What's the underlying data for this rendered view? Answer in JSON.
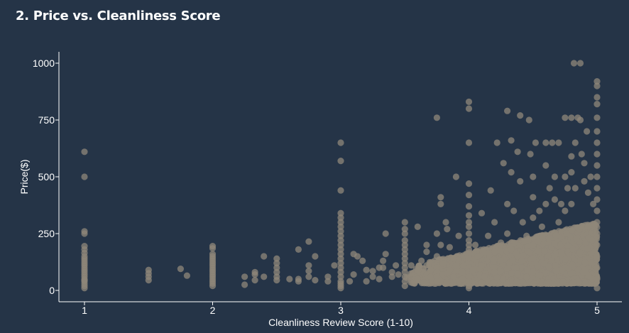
{
  "chart_data": {
    "type": "scatter",
    "title": "2. Price vs. Cleanliness Score",
    "xlabel": "Cleanliness Review Score (1-10)",
    "ylabel": "Price($)",
    "xlim": [
      0.8,
      5.2
    ],
    "ylim": [
      -50,
      1050
    ],
    "xticks": [
      1,
      2,
      3,
      4,
      5
    ],
    "yticks": [
      0,
      250,
      500,
      750,
      1000
    ],
    "grid": false,
    "point_color": "#8f877a",
    "point_opacity": 0.75,
    "series": [
      {
        "points": [
          [
            1,
            610
          ],
          [
            1,
            500
          ],
          [
            1,
            260
          ],
          [
            1,
            250
          ],
          [
            1,
            195
          ],
          [
            1,
            180
          ],
          [
            1,
            165
          ],
          [
            1,
            150
          ],
          [
            1,
            140
          ],
          [
            1,
            130
          ],
          [
            1,
            120
          ],
          [
            1,
            110
          ],
          [
            1,
            100
          ],
          [
            1,
            90
          ],
          [
            1,
            80
          ],
          [
            1,
            70
          ],
          [
            1,
            60
          ],
          [
            1,
            50
          ],
          [
            1,
            45
          ],
          [
            1,
            40
          ],
          [
            1,
            30
          ],
          [
            1,
            20
          ],
          [
            1,
            10
          ],
          [
            1.5,
            90
          ],
          [
            1.5,
            75
          ],
          [
            1.5,
            60
          ],
          [
            1.5,
            45
          ],
          [
            1.75,
            95
          ],
          [
            1.8,
            65
          ],
          [
            2,
            195
          ],
          [
            2,
            185
          ],
          [
            2,
            160
          ],
          [
            2,
            150
          ],
          [
            2,
            140
          ],
          [
            2,
            130
          ],
          [
            2,
            120
          ],
          [
            2,
            110
          ],
          [
            2,
            100
          ],
          [
            2,
            90
          ],
          [
            2,
            80
          ],
          [
            2,
            70
          ],
          [
            2,
            60
          ],
          [
            2,
            50
          ],
          [
            2,
            40
          ],
          [
            2,
            30
          ],
          [
            2,
            20
          ],
          [
            2.25,
            60
          ],
          [
            2.25,
            25
          ],
          [
            2.33,
            80
          ],
          [
            2.33,
            70
          ],
          [
            2.33,
            45
          ],
          [
            2.4,
            150
          ],
          [
            2.4,
            60
          ],
          [
            2.5,
            140
          ],
          [
            2.5,
            120
          ],
          [
            2.5,
            100
          ],
          [
            2.5,
            80
          ],
          [
            2.5,
            60
          ],
          [
            2.5,
            45
          ],
          [
            2.67,
            180
          ],
          [
            2.67,
            50
          ],
          [
            2.67,
            40
          ],
          [
            2.6,
            50
          ],
          [
            2.75,
            215
          ],
          [
            2.75,
            110
          ],
          [
            2.75,
            85
          ],
          [
            2.75,
            60
          ],
          [
            2.8,
            150
          ],
          [
            2.8,
            45
          ],
          [
            2.9,
            60
          ],
          [
            2.9,
            40
          ],
          [
            2.95,
            110
          ],
          [
            3,
            650
          ],
          [
            3,
            570
          ],
          [
            3,
            440
          ],
          [
            3,
            340
          ],
          [
            3,
            320
          ],
          [
            3,
            300
          ],
          [
            3,
            280
          ],
          [
            3,
            260
          ],
          [
            3,
            240
          ],
          [
            3,
            220
          ],
          [
            3,
            200
          ],
          [
            3,
            180
          ],
          [
            3,
            160
          ],
          [
            3,
            140
          ],
          [
            3,
            120
          ],
          [
            3,
            100
          ],
          [
            3,
            80
          ],
          [
            3,
            60
          ],
          [
            3,
            40
          ],
          [
            3,
            30
          ],
          [
            3,
            20
          ],
          [
            3,
            10
          ],
          [
            3.07,
            40
          ],
          [
            3.1,
            70
          ],
          [
            3.1,
            160
          ],
          [
            3.13,
            150
          ],
          [
            3.17,
            130
          ],
          [
            3.2,
            90
          ],
          [
            3.2,
            40
          ],
          [
            3.25,
            85
          ],
          [
            3.25,
            60
          ],
          [
            3.3,
            100
          ],
          [
            3.3,
            50
          ],
          [
            3.33,
            130
          ],
          [
            3.33,
            100
          ],
          [
            3.35,
            250
          ],
          [
            3.35,
            160
          ],
          [
            3.4,
            80
          ],
          [
            3.4,
            60
          ],
          [
            3.43,
            110
          ],
          [
            3.45,
            70
          ],
          [
            3.5,
            300
          ],
          [
            3.5,
            270
          ],
          [
            3.5,
            250
          ],
          [
            3.5,
            220
          ],
          [
            3.5,
            200
          ],
          [
            3.5,
            180
          ],
          [
            3.5,
            160
          ],
          [
            3.5,
            140
          ],
          [
            3.5,
            120
          ],
          [
            3.5,
            100
          ],
          [
            3.5,
            80
          ],
          [
            3.5,
            60
          ],
          [
            3.5,
            40
          ],
          [
            3.5,
            20
          ],
          [
            3.55,
            110
          ],
          [
            3.6,
            280
          ],
          [
            3.6,
            90
          ],
          [
            3.6,
            50
          ],
          [
            3.63,
            130
          ],
          [
            3.67,
            200
          ],
          [
            3.67,
            170
          ],
          [
            3.67,
            110
          ],
          [
            3.67,
            70
          ],
          [
            3.7,
            60
          ],
          [
            3.7,
            90
          ],
          [
            3.73,
            110
          ],
          [
            3.75,
            760
          ],
          [
            3.75,
            250
          ],
          [
            3.75,
            150
          ],
          [
            3.75,
            100
          ],
          [
            3.75,
            80
          ],
          [
            3.75,
            60
          ],
          [
            3.75,
            40
          ],
          [
            3.78,
            410
          ],
          [
            3.78,
            380
          ],
          [
            3.78,
            200
          ],
          [
            3.8,
            120
          ],
          [
            3.8,
            70
          ],
          [
            3.82,
            300
          ],
          [
            3.83,
            270
          ],
          [
            3.85,
            190
          ],
          [
            3.85,
            90
          ],
          [
            3.88,
            140
          ],
          [
            3.88,
            60
          ],
          [
            3.9,
            500
          ],
          [
            3.9,
            110
          ],
          [
            3.92,
            240
          ],
          [
            3.95,
            80
          ],
          [
            3.95,
            50
          ],
          [
            4,
            830
          ],
          [
            4,
            800
          ],
          [
            4,
            650
          ],
          [
            4,
            470
          ],
          [
            4,
            420
          ],
          [
            4,
            370
          ],
          [
            4,
            330
          ],
          [
            4,
            300
          ],
          [
            4,
            280
          ],
          [
            4,
            250
          ],
          [
            4,
            220
          ],
          [
            4,
            200
          ],
          [
            4,
            180
          ],
          [
            4,
            160
          ],
          [
            4,
            140
          ],
          [
            4,
            120
          ],
          [
            4,
            100
          ],
          [
            4,
            80
          ],
          [
            4,
            60
          ],
          [
            4,
            40
          ],
          [
            4,
            20
          ],
          [
            4,
            10
          ],
          [
            4.03,
            90
          ],
          [
            4.05,
            200
          ],
          [
            4.07,
            150
          ],
          [
            4.1,
            340
          ],
          [
            4.1,
            110
          ],
          [
            4.12,
            60
          ],
          [
            4.15,
            240
          ],
          [
            4.17,
            440
          ],
          [
            4.2,
            300
          ],
          [
            4.2,
            170
          ],
          [
            4.2,
            80
          ],
          [
            4.22,
            650
          ],
          [
            4.25,
            210
          ],
          [
            4.25,
            130
          ],
          [
            4.27,
            560
          ],
          [
            4.3,
            790
          ],
          [
            4.3,
            380
          ],
          [
            4.3,
            250
          ],
          [
            4.33,
            660
          ],
          [
            4.33,
            520
          ],
          [
            4.33,
            180
          ],
          [
            4.35,
            350
          ],
          [
            4.37,
            100
          ],
          [
            4.38,
            610
          ],
          [
            4.4,
            770
          ],
          [
            4.4,
            480
          ],
          [
            4.42,
            300
          ],
          [
            4.45,
            240
          ],
          [
            4.47,
            750
          ],
          [
            4.48,
            600
          ],
          [
            4.5,
            500
          ],
          [
            4.5,
            410
          ],
          [
            4.5,
            320
          ],
          [
            4.5,
            200
          ],
          [
            4.5,
            140
          ],
          [
            4.5,
            80
          ],
          [
            4.52,
            650
          ],
          [
            4.55,
            350
          ],
          [
            4.57,
            280
          ],
          [
            4.6,
            650
          ],
          [
            4.6,
            550
          ],
          [
            4.6,
            380
          ],
          [
            4.63,
            450
          ],
          [
            4.65,
            650
          ],
          [
            4.67,
            500
          ],
          [
            4.67,
            400
          ],
          [
            4.7,
            300
          ],
          [
            4.7,
            650
          ],
          [
            4.72,
            380
          ],
          [
            4.75,
            760
          ],
          [
            4.75,
            500
          ],
          [
            4.75,
            350
          ],
          [
            4.77,
            450
          ],
          [
            4.8,
            760
          ],
          [
            4.8,
            590
          ],
          [
            4.8,
            520
          ],
          [
            4.8,
            380
          ],
          [
            4.82,
            1000
          ],
          [
            4.83,
            650
          ],
          [
            4.83,
            450
          ],
          [
            4.85,
            760
          ],
          [
            4.87,
            1000
          ],
          [
            4.87,
            750
          ],
          [
            4.88,
            600
          ],
          [
            4.9,
            560
          ],
          [
            4.9,
            480
          ],
          [
            4.92,
            700
          ],
          [
            4.93,
            430
          ],
          [
            4.95,
            500
          ],
          [
            4.97,
            380
          ],
          [
            5,
            920
          ],
          [
            5,
            900
          ],
          [
            5,
            850
          ],
          [
            5,
            820
          ],
          [
            5,
            760
          ],
          [
            5,
            700
          ],
          [
            5,
            650
          ],
          [
            5,
            600
          ],
          [
            5,
            550
          ],
          [
            5,
            500
          ],
          [
            5,
            450
          ],
          [
            5,
            400
          ],
          [
            5,
            350
          ],
          [
            5,
            300
          ],
          [
            5,
            250
          ],
          [
            5,
            200
          ],
          [
            5,
            150
          ],
          [
            5,
            100
          ],
          [
            5,
            50
          ],
          [
            5,
            10
          ]
        ]
      }
    ],
    "dense_band": {
      "x_start": 3.5,
      "x_end": 5,
      "y_low": 30,
      "y_high_at_start": 100,
      "y_high_at_end": 300,
      "count": 3200
    }
  }
}
